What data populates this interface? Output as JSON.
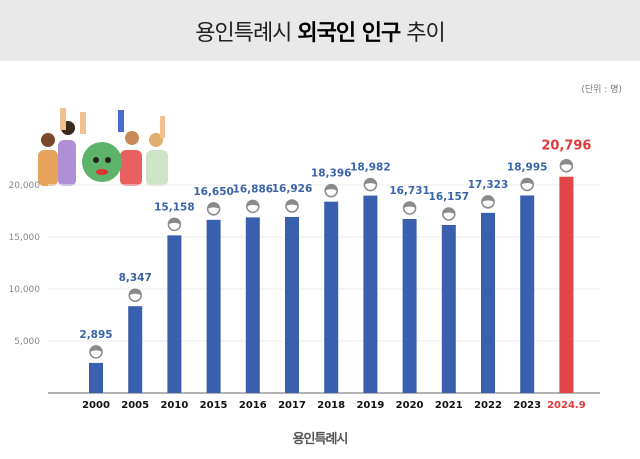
{
  "header": {
    "title_prefix": "용인특례시",
    "title_bold": "외국인 인구",
    "title_suffix": "추이"
  },
  "unit_label": "(단위 : 명)",
  "footer_logo": "용인특례시",
  "chart_data": {
    "type": "bar",
    "title": "용인특례시 외국인 인구 추이",
    "categories": [
      "2000",
      "2005",
      "2010",
      "2015",
      "2016",
      "2017",
      "2018",
      "2019",
      "2020",
      "2021",
      "2022",
      "2023",
      "2024.9"
    ],
    "values": [
      2895,
      8347,
      15158,
      16650,
      16886,
      16926,
      18396,
      18982,
      16731,
      16157,
      17323,
      18995,
      20796
    ],
    "data_labels": [
      "2,895",
      "8,347",
      "15,158",
      "16,650",
      "16,886",
      "16,926",
      "18,396",
      "18,982",
      "16,731",
      "16,157",
      "17,323",
      "18,995",
      "20,796"
    ],
    "yticks": [
      5000,
      10000,
      15000,
      20000
    ],
    "ytick_labels": [
      "5,000",
      "10,000",
      "15,000",
      "20,000"
    ],
    "ylim": [
      0,
      20000
    ],
    "grid": true,
    "colors": {
      "bar": "#3a5fae",
      "highlight": "#e04646",
      "person_icon": "#8a8a8a"
    },
    "highlight_category": "2024.9"
  }
}
